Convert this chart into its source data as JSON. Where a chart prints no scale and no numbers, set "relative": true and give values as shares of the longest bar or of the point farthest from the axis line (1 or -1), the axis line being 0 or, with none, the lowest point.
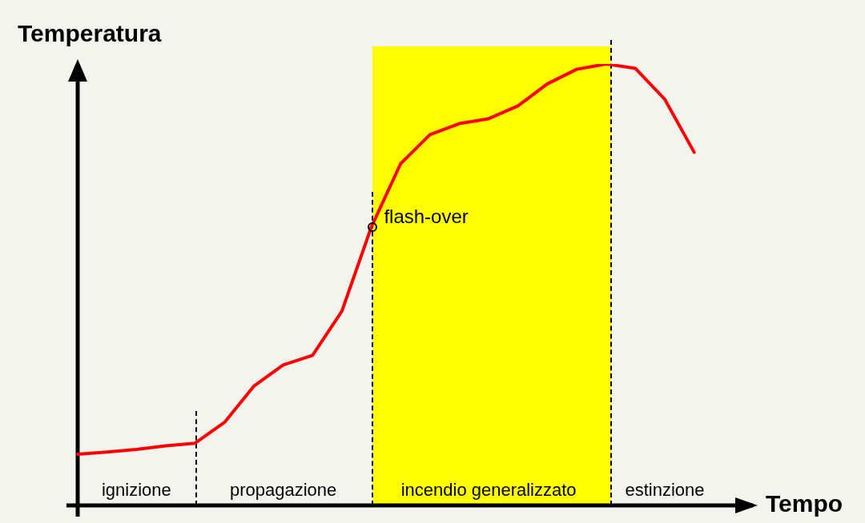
{
  "chart_data": {
    "type": "line",
    "relative": true,
    "xlabel": "Tempo",
    "ylabel": "Temperatura",
    "tick_labels": "x",
    "marker": "none",
    "categories": [
      null,
      null,
      "ignizione",
      null,
      null,
      null,
      null,
      "propagazione",
      null,
      null,
      null,
      null,
      null,
      null,
      "incendio generalizzato",
      null,
      null,
      null,
      null,
      null,
      "estinzione",
      null,
      null,
      null
    ],
    "series": [
      {
        "color": "#ff0000",
        "values": [
          0.116,
          0.121,
          0.127,
          0.135,
          0.141,
          0.188,
          0.27,
          0.318,
          0.34,
          0.44,
          0.63,
          0.774,
          0.84,
          0.865,
          0.876,
          0.905,
          0.955,
          0.988,
          1,
          0.99,
          0.92,
          0.8,
          null,
          null
        ]
      }
    ],
    "annotations": [
      "flash-over"
    ]
  }
}
